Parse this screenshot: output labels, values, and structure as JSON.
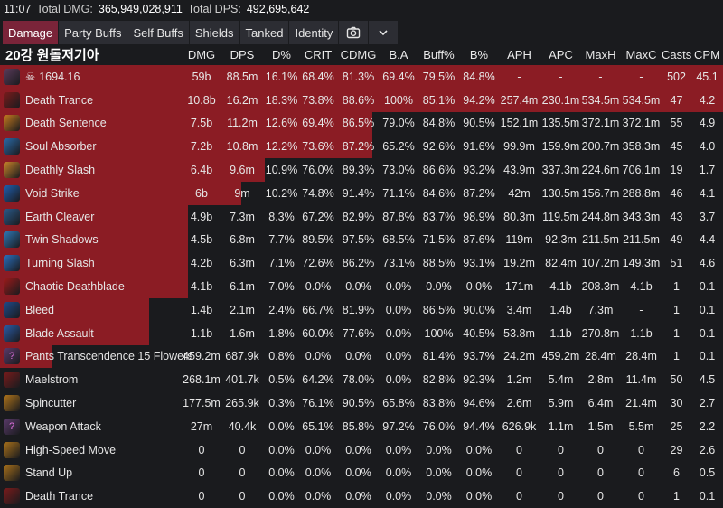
{
  "topbar": {
    "time": "11:07",
    "total_dmg_label": "Total DMG:",
    "total_dmg": "365,949,028,911",
    "total_dps_label": "Total DPS:",
    "total_dps": "492,695,642"
  },
  "tabs": [
    {
      "label": "Damage",
      "active": true
    },
    {
      "label": "Party Buffs",
      "active": false
    },
    {
      "label": "Self Buffs",
      "active": false
    },
    {
      "label": "Shields",
      "active": false
    },
    {
      "label": "Tanked",
      "active": false
    },
    {
      "label": "Identity",
      "active": false
    }
  ],
  "icons": {
    "screenshot": "camera-icon",
    "collapse": "chevron-down-icon",
    "skull": "skull-icon"
  },
  "colors": {
    "bar": "#8b1c24",
    "active_tab": "#7a2439",
    "tab": "#2c2d33",
    "bg": "#1a1b1e"
  },
  "header": {
    "name": "20강 원돌저기아",
    "cols": [
      "DMG",
      "DPS",
      "D%",
      "CRIT",
      "CDMG",
      "B.A",
      "Buff%",
      "B%",
      "APH",
      "APC",
      "MaxH",
      "MaxC",
      "Casts",
      "CPM"
    ]
  },
  "rows": [
    {
      "name": "1694.16",
      "icon": "class-icon",
      "icon_color": "#5a3a5a",
      "bar": 1.0,
      "skull": true,
      "v": [
        "59b",
        "88.5m",
        "16.1%",
        "68.4%",
        "81.3%",
        "69.4%",
        "79.5%",
        "84.8%",
        "-",
        "-",
        "-",
        "-",
        "502",
        "45.1"
      ]
    },
    {
      "name": "Death Trance",
      "icon": "death-trance-icon",
      "icon_color": "#7a1b1b",
      "bar": 1.0,
      "v": [
        "10.8b",
        "16.2m",
        "18.3%",
        "73.8%",
        "88.6%",
        "100%",
        "85.1%",
        "94.2%",
        "257.4m",
        "230.1m",
        "534.5m",
        "534.5m",
        "47",
        "4.2"
      ]
    },
    {
      "name": "Death Sentence",
      "icon": "death-sentence-icon",
      "icon_color": "#c77a1f",
      "bar": 0.515,
      "v": [
        "7.5b",
        "11.2m",
        "12.6%",
        "69.4%",
        "86.5%",
        "79.0%",
        "84.8%",
        "90.5%",
        "152.1m",
        "135.5m",
        "372.1m",
        "372.1m",
        "55",
        "4.9"
      ]
    },
    {
      "name": "Soul Absorber",
      "icon": "soul-absorber-icon",
      "icon_color": "#2a6aa8",
      "bar": 0.515,
      "v": [
        "7.2b",
        "10.8m",
        "12.2%",
        "73.6%",
        "87.2%",
        "65.2%",
        "92.6%",
        "91.6%",
        "99.9m",
        "159.9m",
        "200.7m",
        "358.3m",
        "45",
        "4.0"
      ]
    },
    {
      "name": "Deathly Slash",
      "icon": "deathly-slash-icon",
      "icon_color": "#c9832a",
      "bar": 0.366,
      "v": [
        "6.4b",
        "9.6m",
        "10.9%",
        "76.0%",
        "89.3%",
        "73.0%",
        "86.6%",
        "93.2%",
        "43.9m",
        "337.3m",
        "224.6m",
        "706.1m",
        "19",
        "1.7"
      ]
    },
    {
      "name": "Void Strike",
      "icon": "void-strike-icon",
      "icon_color": "#1f5fb0",
      "bar": 0.334,
      "v": [
        "6b",
        "9m",
        "10.2%",
        "74.8%",
        "91.4%",
        "71.1%",
        "84.6%",
        "87.2%",
        "42m",
        "130.5m",
        "156.7m",
        "288.8m",
        "46",
        "4.1"
      ]
    },
    {
      "name": "Earth Cleaver",
      "icon": "earth-cleaver-icon",
      "icon_color": "#2a5a8a",
      "bar": 0.26,
      "v": [
        "4.9b",
        "7.3m",
        "8.3%",
        "67.2%",
        "82.9%",
        "87.8%",
        "83.7%",
        "98.9%",
        "80.3m",
        "119.5m",
        "244.8m",
        "343.3m",
        "43",
        "3.7"
      ]
    },
    {
      "name": "Twin Shadows",
      "icon": "twin-shadows-icon",
      "icon_color": "#2e78b8",
      "bar": 0.26,
      "v": [
        "4.5b",
        "6.8m",
        "7.7%",
        "89.5%",
        "97.5%",
        "68.5%",
        "71.5%",
        "87.6%",
        "119m",
        "92.3m",
        "211.5m",
        "211.5m",
        "49",
        "4.4"
      ]
    },
    {
      "name": "Turning Slash",
      "icon": "turning-slash-icon",
      "icon_color": "#2a70c0",
      "bar": 0.26,
      "v": [
        "4.2b",
        "6.3m",
        "7.1%",
        "72.6%",
        "86.2%",
        "73.1%",
        "88.5%",
        "93.1%",
        "19.2m",
        "82.4m",
        "107.2m",
        "149.3m",
        "51",
        "4.6"
      ]
    },
    {
      "name": "Chaotic Deathblade",
      "icon": "chaotic-deathblade-icon",
      "icon_color": "#9a1a1a",
      "bar": 0.26,
      "v": [
        "4.1b",
        "6.1m",
        "7.0%",
        "0.0%",
        "0.0%",
        "0.0%",
        "0.0%",
        "0.0%",
        "171m",
        "4.1b",
        "208.3m",
        "4.1b",
        "1",
        "0.1"
      ]
    },
    {
      "name": "Bleed",
      "icon": "bleed-icon",
      "icon_color": "#1f4a8a",
      "bar": 0.206,
      "v": [
        "1.4b",
        "2.1m",
        "2.4%",
        "66.7%",
        "81.9%",
        "0.0%",
        "86.5%",
        "90.0%",
        "3.4m",
        "1.4b",
        "7.3m",
        "-",
        "1",
        "0.1"
      ]
    },
    {
      "name": "Blade Assault",
      "icon": "blade-assault-icon",
      "icon_color": "#2a5ca8",
      "bar": 0.206,
      "v": [
        "1.1b",
        "1.6m",
        "1.8%",
        "60.0%",
        "77.6%",
        "0.0%",
        "100%",
        "40.5%",
        "53.8m",
        "1.1b",
        "270.8m",
        "1.1b",
        "1",
        "0.1"
      ]
    },
    {
      "name": "Pants Transcendence 15 Flowers",
      "icon": "unknown-skill-icon",
      "icon_color": "#5a3a6a",
      "bar": 0.071,
      "v": [
        "459.2m",
        "687.9k",
        "0.8%",
        "0.0%",
        "0.0%",
        "0.0%",
        "81.4%",
        "93.7%",
        "24.2m",
        "459.2m",
        "28.4m",
        "28.4m",
        "1",
        "0.1"
      ]
    },
    {
      "name": "Maelstrom",
      "icon": "maelstrom-icon",
      "icon_color": "#7a1b1b",
      "bar": 0.0,
      "v": [
        "268.1m",
        "401.7k",
        "0.5%",
        "64.2%",
        "78.0%",
        "0.0%",
        "82.8%",
        "92.3%",
        "1.2m",
        "5.4m",
        "2.8m",
        "11.4m",
        "50",
        "4.5"
      ]
    },
    {
      "name": "Spincutter",
      "icon": "spincutter-icon",
      "icon_color": "#b0741a",
      "bar": 0.0,
      "v": [
        "177.5m",
        "265.9k",
        "0.3%",
        "76.1%",
        "90.5%",
        "65.8%",
        "83.8%",
        "94.6%",
        "2.6m",
        "5.9m",
        "6.4m",
        "21.4m",
        "30",
        "2.7"
      ]
    },
    {
      "name": "Weapon Attack",
      "icon": "unknown-skill-icon",
      "icon_color": "#5a3a6a",
      "bar": 0.0,
      "v": [
        "27m",
        "40.4k",
        "0.0%",
        "65.1%",
        "85.8%",
        "97.2%",
        "76.0%",
        "94.4%",
        "626.9k",
        "1.1m",
        "1.5m",
        "5.5m",
        "25",
        "2.2"
      ]
    },
    {
      "name": "High-Speed Move",
      "icon": "high-speed-move-icon",
      "icon_color": "#a8701a",
      "bar": 0.0,
      "v": [
        "0",
        "0",
        "0.0%",
        "0.0%",
        "0.0%",
        "0.0%",
        "0.0%",
        "0.0%",
        "0",
        "0",
        "0",
        "0",
        "29",
        "2.6"
      ]
    },
    {
      "name": "Stand Up",
      "icon": "stand-up-icon",
      "icon_color": "#a8701a",
      "bar": 0.0,
      "v": [
        "0",
        "0",
        "0.0%",
        "0.0%",
        "0.0%",
        "0.0%",
        "0.0%",
        "0.0%",
        "0",
        "0",
        "0",
        "0",
        "6",
        "0.5"
      ]
    },
    {
      "name": "Death Trance",
      "icon": "death-trance-icon",
      "icon_color": "#7a1b1b",
      "bar": 0.0,
      "v": [
        "0",
        "0",
        "0.0%",
        "0.0%",
        "0.0%",
        "0.0%",
        "0.0%",
        "0.0%",
        "0",
        "0",
        "0",
        "0",
        "1",
        "0.1"
      ]
    }
  ]
}
